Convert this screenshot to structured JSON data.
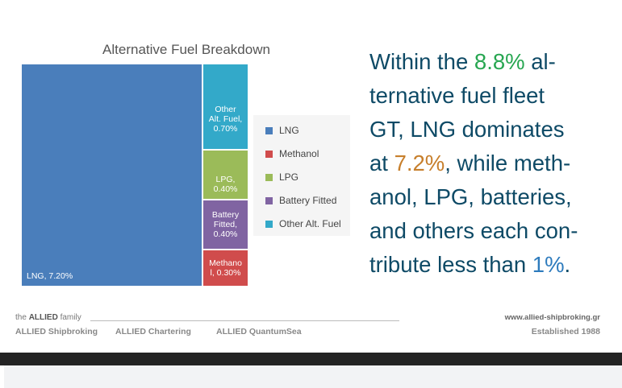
{
  "chart_data": {
    "type": "treemap",
    "title": "Alternative Fuel Breakdown",
    "categories": [
      "LNG",
      "Methanol",
      "LPG",
      "Battery Fitted",
      "Other Alt. Fuel"
    ],
    "values": [
      7.2,
      0.3,
      0.4,
      0.4,
      0.7
    ],
    "unit": "%",
    "tile_labels": {
      "LNG": "LNG, 7.20%",
      "Other": [
        "Other",
        "Alt. Fuel,",
        "0.70%"
      ],
      "LPG": [
        "LPG,",
        "0.40%"
      ],
      "Battery": [
        "Battery",
        "Fitted,",
        "0.40%"
      ],
      "Methanol": [
        "Methano",
        "l, 0.30%"
      ]
    },
    "colors": {
      "LNG": "#4a7ebb",
      "Methanol": "#d04c4c",
      "LPG": "#9bbb59",
      "Battery Fitted": "#8064a2",
      "Other Alt. Fuel": "#33a9c9"
    },
    "legend": [
      "LNG",
      "Methanol",
      "LPG",
      "Battery Fitted",
      "Other Alt. Fuel"
    ],
    "legend_placement": "right"
  },
  "summary_lines": [
    [
      {
        "t": "Within the ",
        "c": ""
      },
      {
        "t": "8.8%",
        "c": "#27a651"
      },
      {
        "t": " al-",
        "c": ""
      }
    ],
    [
      {
        "t": "ternative fuel fleet",
        "c": ""
      }
    ],
    [
      {
        "t": "GT, LNG dominates",
        "c": ""
      }
    ],
    [
      {
        "t": "at ",
        "c": ""
      },
      {
        "t": "7.2%",
        "c": "#c77f2c"
      },
      {
        "t": ", while meth-",
        "c": ""
      }
    ],
    [
      {
        "t": "anol, LPG, batteries,",
        "c": ""
      }
    ],
    [
      {
        "t": "and others each con-",
        "c": ""
      }
    ],
    [
      {
        "t": "tribute less than ",
        "c": ""
      },
      {
        "t": "1%",
        "c": "#2d7bbd"
      },
      {
        "t": ".",
        "c": ""
      }
    ]
  ],
  "footer": {
    "family_prefix": "the ",
    "family_brand": "ALLIED",
    "family_suffix": " family",
    "companies": [
      "ALLIED Shipbroking",
      "ALLIED Chartering",
      "ALLIED QuantumSea"
    ],
    "website": "www.allied-shipbroking.gr",
    "established": "Established 1988"
  }
}
